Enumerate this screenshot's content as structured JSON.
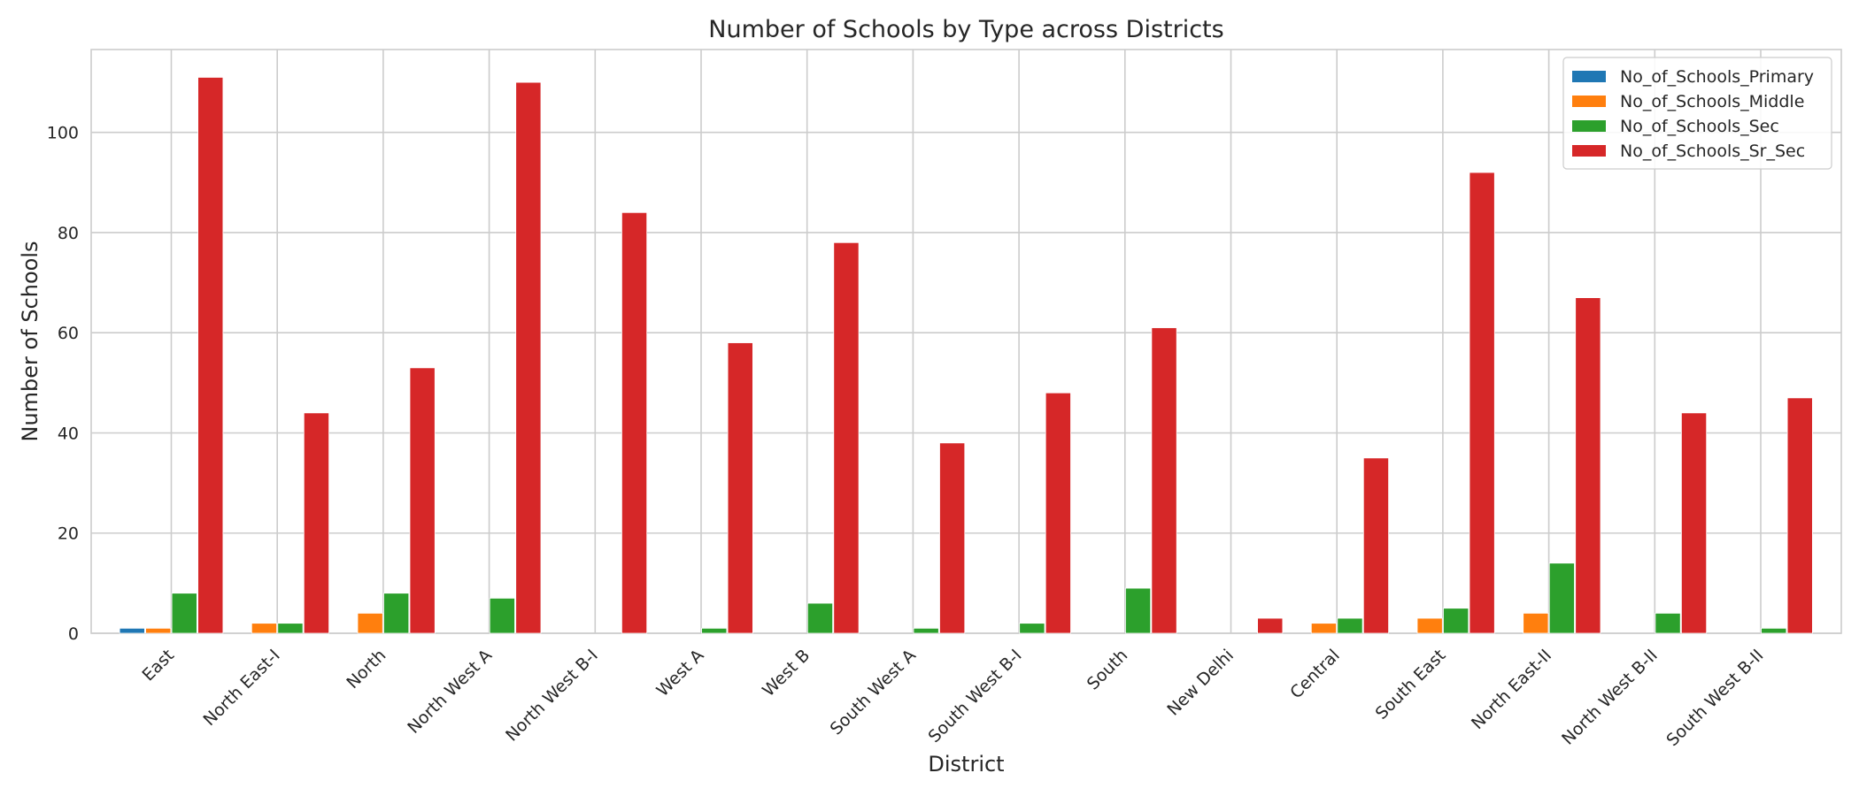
{
  "chart_data": {
    "type": "bar",
    "title": "Number of Schools by Type across Districts",
    "xlabel": "District",
    "ylabel": "Number of Schools",
    "categories": [
      "East",
      "North East-I",
      "North",
      "North West A",
      "North West B-I",
      "West A",
      "West B",
      "South West A",
      "South West B-I",
      "South",
      "New Delhi",
      "Central",
      "South East",
      "North East-II",
      "North West B-II",
      "South West B-II"
    ],
    "series": [
      {
        "name": "No_of_Schools_Primary",
        "color": "#1f77b4",
        "values": [
          1,
          0,
          0,
          0,
          0,
          0,
          0,
          0,
          0,
          0,
          0,
          0,
          0,
          0,
          0,
          0
        ]
      },
      {
        "name": "No_of_Schools_Middle",
        "color": "#ff7f0e",
        "values": [
          1,
          2,
          4,
          0,
          0,
          0,
          0,
          0,
          0,
          0,
          0,
          2,
          3,
          4,
          0,
          0
        ]
      },
      {
        "name": "No_of_Schools_Sec",
        "color": "#2ca02c",
        "values": [
          8,
          2,
          8,
          7,
          0,
          1,
          6,
          1,
          2,
          9,
          0,
          3,
          5,
          14,
          4,
          1
        ]
      },
      {
        "name": "No_of_Schools_Sr_Sec",
        "color": "#d62728",
        "values": [
          111,
          44,
          53,
          110,
          84,
          58,
          78,
          38,
          48,
          61,
          3,
          35,
          92,
          67,
          44,
          47
        ]
      }
    ],
    "yticks": [
      0,
      20,
      40,
      60,
      80,
      100
    ],
    "ylim": [
      0,
      116.55
    ],
    "grid": true,
    "legend_position": "top-right"
  }
}
